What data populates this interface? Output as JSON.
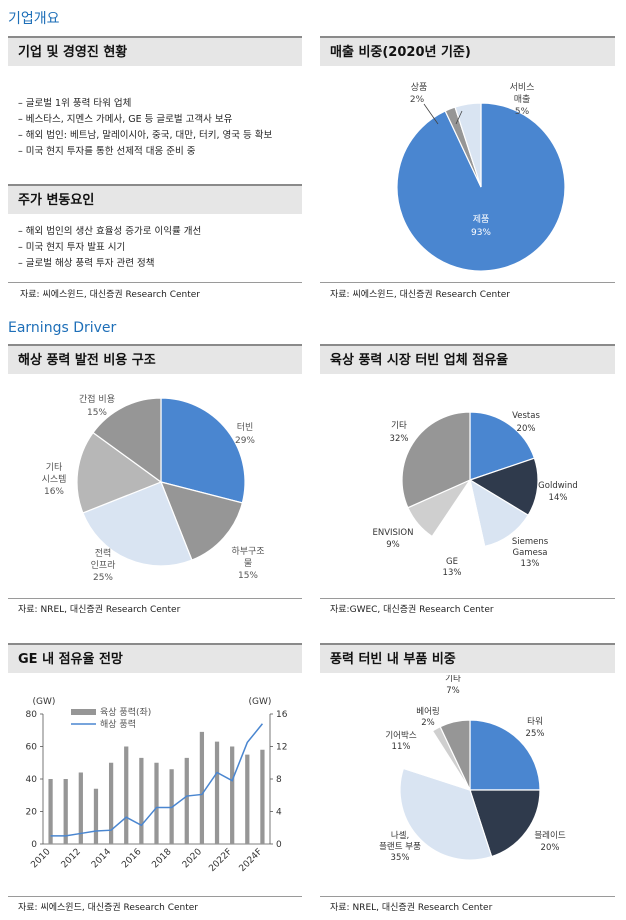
{
  "sections": {
    "company": "기업개요",
    "earnings": "Earnings Driver"
  },
  "overview": {
    "title": "기업 및 경영진 현황",
    "bullets": [
      "글로벌 1위 풍력 타워 업체",
      "베스타스, 지멘스 가메사, GE 등 글로벌 고객사 보유",
      "해외 법인: 베트남, 말레이시아, 중국, 대만, 터키, 영국 등 확보",
      "미국 현지 투자를 통한 선제적 대응 준비 중"
    ]
  },
  "stock": {
    "title": "주가 변동요인",
    "bullets": [
      "해외 법인의 생산 효율성 증가로 이익률 개선",
      "미국 현지 투자 발표 시기",
      "글로벌 해상 풍력 투자 관련 정책"
    ]
  },
  "sources": {
    "overview": "자료: 씨에스윈드, 대신증권 Research Center",
    "sales": "자료: 씨에스윈드, 대신증권 Research Center",
    "offshore": "자료: NREL, 대신증권 Research Center",
    "onshore": "자료:GWEC, 대신증권 Research Center",
    "ge": "자료: 씨에스윈드, 대신증권 Research Center",
    "parts": "자료: NREL, 대신증권 Research Center"
  },
  "colors": {
    "blue": "#4a86d0",
    "gray": "#969696",
    "dark": "#2f3a4c",
    "light_gray": "#cfcfcf",
    "pale_blue": "#d9e4f2",
    "mid_gray": "#b7b7b7",
    "white": "#ffffff",
    "lighter": "#e6e6e6",
    "accent": "#1e6fb8"
  },
  "chart_data": [
    {
      "id": "sales",
      "type": "pie",
      "title": "매출 비중(2020년 기준)",
      "slices": [
        {
          "label": "제품",
          "value": 93,
          "display": "93%",
          "color": "#4a86d0"
        },
        {
          "label": "상품",
          "value": 2,
          "display": "2%",
          "color": "#969696"
        },
        {
          "label": "서비스 매출",
          "value": 5,
          "display": "5%",
          "color": "#d9e4f2"
        }
      ]
    },
    {
      "id": "offshore",
      "type": "pie",
      "title": "해상 풍력 발전 비용 구조",
      "slices": [
        {
          "label": "터빈",
          "value": 29,
          "display": "29%",
          "color": "#4a86d0"
        },
        {
          "label": "하부구조물",
          "value": 15,
          "display": "15%",
          "color": "#969696"
        },
        {
          "label": "전력 인프라",
          "value": 25,
          "display": "25%",
          "color": "#d9e4f2"
        },
        {
          "label": "기타 시스템",
          "value": 16,
          "display": "16%",
          "color": "#b7b7b7"
        },
        {
          "label": "간접 비용",
          "value": 15,
          "display": "15%",
          "color": "#969696"
        }
      ]
    },
    {
      "id": "onshore",
      "type": "pie",
      "title": "육상 풍력 시장 터빈 업체 점유율",
      "slices": [
        {
          "label": "Vestas",
          "value": 20,
          "display": "20%",
          "color": "#4a86d0"
        },
        {
          "label": "Goldwind",
          "value": 14,
          "display": "14%",
          "color": "#2f3a4c"
        },
        {
          "label": "Siemens Gamesa",
          "value": 13,
          "display": "13%",
          "color": "#d9e4f2"
        },
        {
          "label": "GE",
          "value": 13,
          "display": "13%",
          "color": "#ffffff"
        },
        {
          "label": "ENVISION",
          "value": 9,
          "display": "9%",
          "color": "#cfcfcf"
        },
        {
          "label": "기타",
          "value": 32,
          "display": "32%",
          "color": "#969696"
        }
      ]
    },
    {
      "id": "ge",
      "type": "bar",
      "title": "GE 내 점유율 전망",
      "categories": [
        "2010",
        "2011",
        "2012",
        "2013",
        "2014",
        "2015",
        "2016",
        "2017",
        "2018",
        "2019",
        "2020",
        "2021",
        "2022F",
        "2023F",
        "2024F"
      ],
      "tick_labels": [
        "2010",
        "2012",
        "2014",
        "2016",
        "2018",
        "2020",
        "2022F",
        "2024F"
      ],
      "left_unit": "(GW)",
      "right_unit": "(GW)",
      "left_ylim": [
        0,
        80
      ],
      "right_ylim": [
        0,
        16
      ],
      "left_ticks": [
        "0",
        "20",
        "40",
        "60",
        "80"
      ],
      "right_ticks": [
        "0",
        "4",
        "8",
        "12",
        "16"
      ],
      "series": [
        {
          "name": "육상 풍력(좌)",
          "type": "bar",
          "axis": "left",
          "color": "#969696",
          "values": [
            40,
            40,
            44,
            34,
            50,
            60,
            53,
            50,
            46,
            53,
            69,
            63,
            60,
            55,
            58
          ]
        },
        {
          "name": "해상 풍력",
          "type": "line",
          "axis": "right",
          "color": "#4a86d0",
          "values": [
            1.0,
            1.0,
            1.3,
            1.6,
            1.7,
            3.3,
            2.3,
            4.5,
            4.5,
            5.9,
            6.1,
            8.8,
            7.8,
            12.5,
            14.8
          ]
        }
      ]
    },
    {
      "id": "parts",
      "type": "pie",
      "title": "풍력 터빈 내 부품 비중",
      "slices": [
        {
          "label": "타워",
          "value": 25,
          "display": "25%",
          "color": "#4a86d0"
        },
        {
          "label": "블레이드",
          "value": 20,
          "display": "20%",
          "color": "#2f3a4c"
        },
        {
          "label": "나셀, 플랜트 부품",
          "value": 35,
          "display": "35%",
          "color": "#d9e4f2"
        },
        {
          "label": "기어박스",
          "value": 11,
          "display": "11%",
          "color": "#ffffff"
        },
        {
          "label": "베어링",
          "value": 2,
          "display": "2%",
          "color": "#cfcfcf"
        },
        {
          "label": "기타",
          "value": 7,
          "display": "7%",
          "color": "#969696"
        }
      ]
    }
  ]
}
